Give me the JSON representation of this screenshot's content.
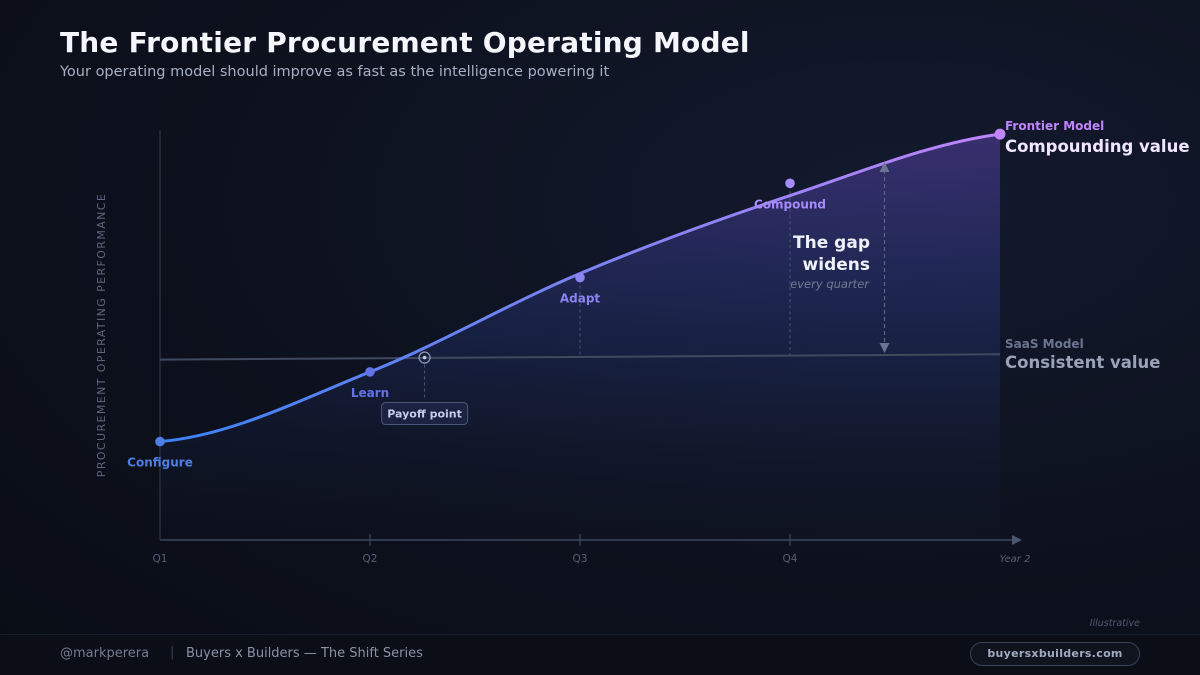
{
  "header": {
    "title": "The Frontier Procurement Operating Model",
    "subtitle": "Your operating model should improve as fast as the intelligence powering it"
  },
  "chart_data": {
    "type": "line",
    "ylabel": "PROCUREMENT OPERATING PERFORMANCE",
    "xlabel": "",
    "x_ticks": [
      "Q1",
      "Q2",
      "Q3",
      "Q4"
    ],
    "x_end_label": "Year 2",
    "ylim": [
      0,
      100
    ],
    "series": [
      {
        "name": "Frontier Model",
        "subtitle": "Compounding value",
        "x": [
          0,
          1,
          2,
          3,
          4
        ],
        "values": [
          24,
          41,
          65,
          84,
          99
        ],
        "color_start": "#3b82f6",
        "color_end": "#c084fc"
      },
      {
        "name": "SaaS Model",
        "subtitle": "Consistent value",
        "x": [
          0,
          4
        ],
        "values": [
          44,
          45.3
        ],
        "color": "#4a5568"
      }
    ],
    "stages": [
      {
        "label": "Configure",
        "x": 0,
        "y": 24,
        "on_curve": true,
        "color": "#4f7fe6"
      },
      {
        "label": "Learn",
        "x": 1,
        "y": 41,
        "on_curve": true,
        "color": "#6472e6"
      },
      {
        "label": "Adapt",
        "x": 2,
        "y": 64,
        "on_curve": false,
        "color": "#8a83f0"
      },
      {
        "label": "Compound",
        "x": 3,
        "y": 87,
        "on_curve": false,
        "color": "#a78bfa"
      }
    ],
    "payoff": {
      "label": "Payoff point",
      "x": 1.26,
      "y": 44.5
    },
    "gap_annotation": {
      "line1": "The gap",
      "line2": "widens",
      "caption": "every quarter"
    },
    "note": "Illustrative"
  },
  "footer": {
    "handle": "@markperera",
    "separator": "|",
    "series": "Buyers x Builders — The Shift Series",
    "url": "buyersxbuilders.com"
  }
}
